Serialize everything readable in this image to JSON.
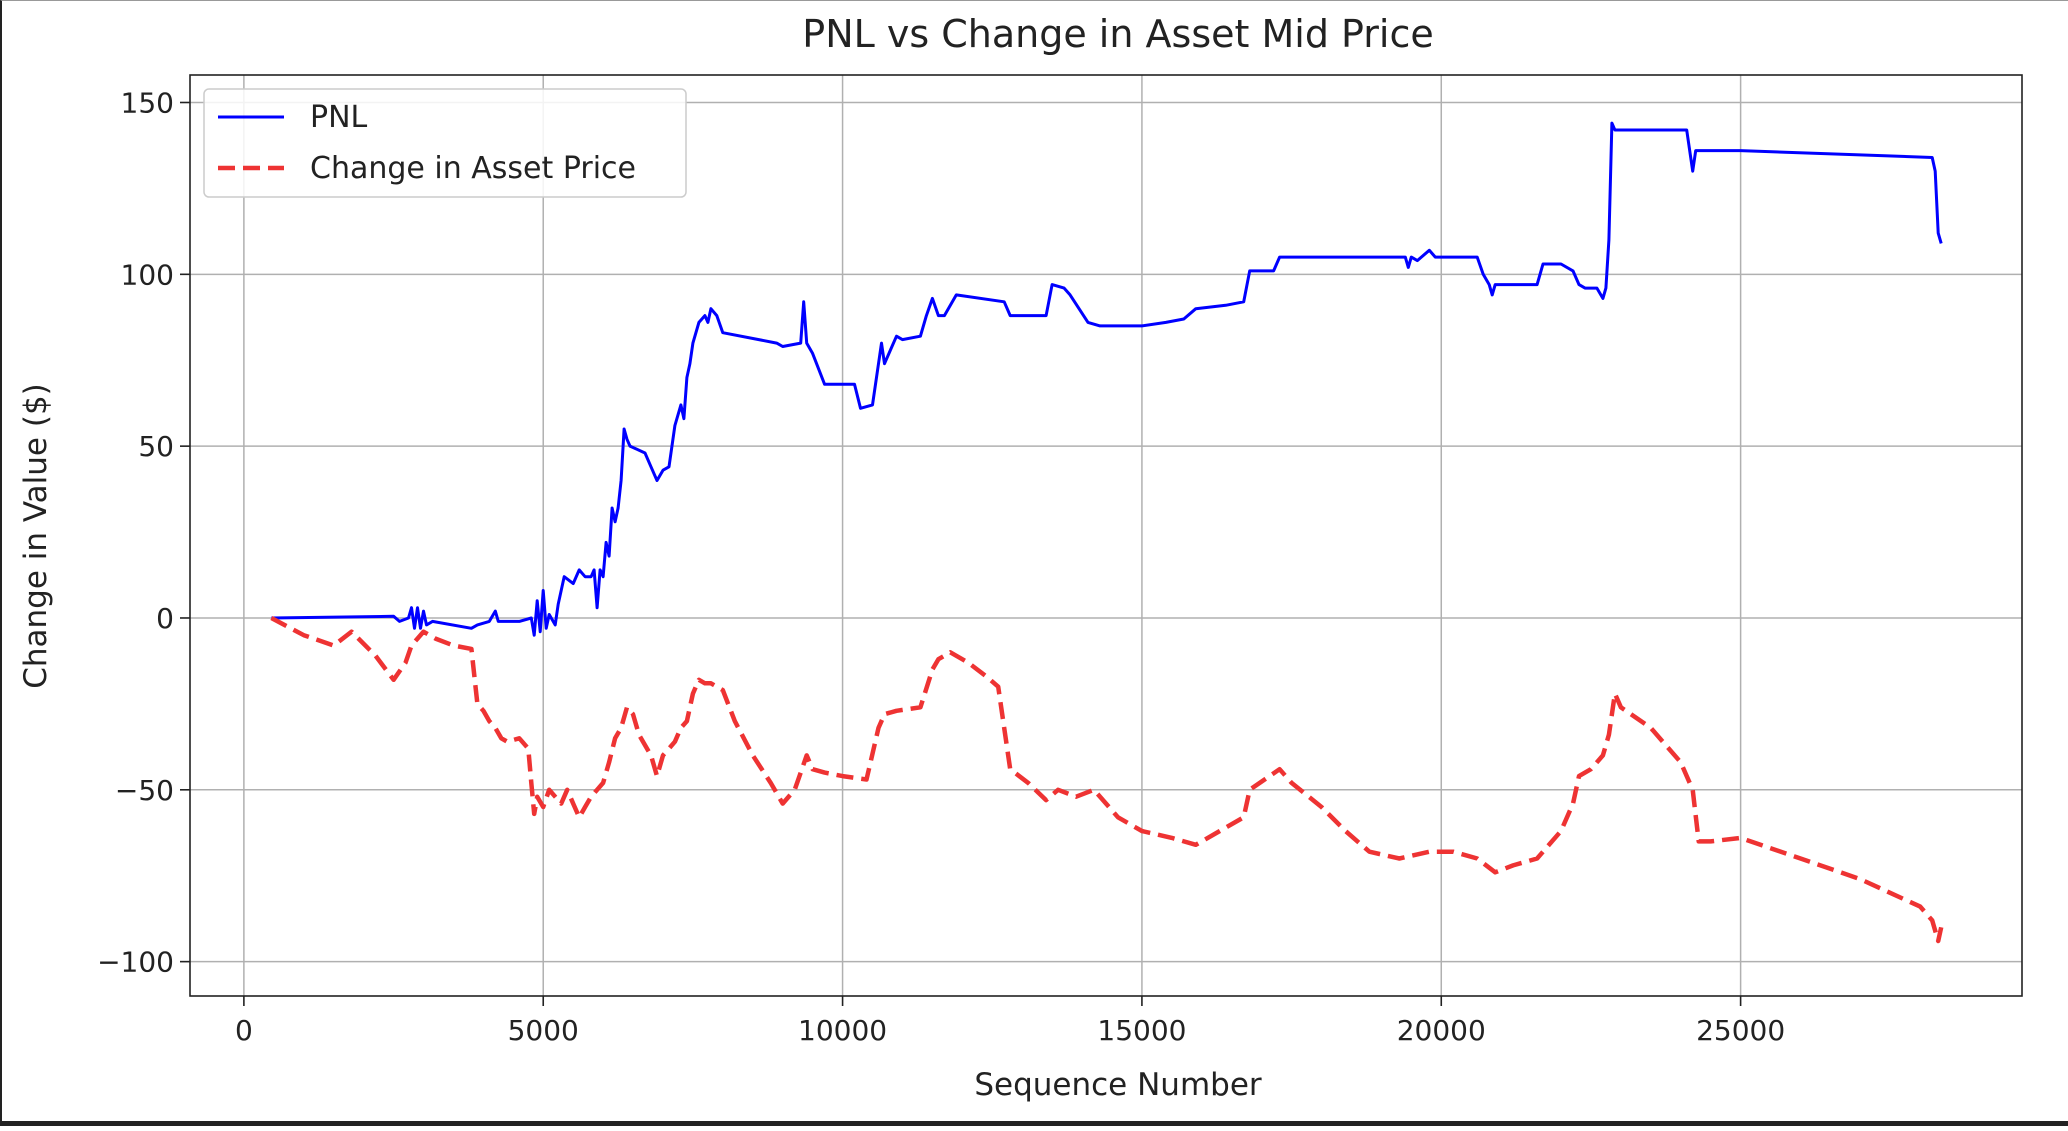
{
  "chart_data": {
    "type": "line",
    "title": "PNL vs Change in Asset Mid Price",
    "xlabel": "Sequence Number",
    "ylabel": "Change in Value ($)",
    "xlim": [
      -900,
      29700
    ],
    "ylim": [
      -110,
      158
    ],
    "xticks": [
      0,
      5000,
      10000,
      15000,
      20000,
      25000
    ],
    "yticks": [
      -100,
      -50,
      0,
      50,
      100,
      150
    ],
    "xtick_labels": [
      "0",
      "5000",
      "10000",
      "15000",
      "20000",
      "25000"
    ],
    "ytick_labels": [
      "−100",
      "−50",
      "0",
      "50",
      "100",
      "150"
    ],
    "grid": true,
    "legend_position": "top-left",
    "series": [
      {
        "name": "PNL",
        "color": "#0000ff",
        "style": "solid",
        "points": [
          [
            460,
            0
          ],
          [
            2500,
            0.5
          ],
          [
            2600,
            -1
          ],
          [
            2750,
            0
          ],
          [
            2800,
            3
          ],
          [
            2850,
            -3
          ],
          [
            2900,
            3
          ],
          [
            2950,
            -3
          ],
          [
            3000,
            2
          ],
          [
            3050,
            -2
          ],
          [
            3150,
            -1
          ],
          [
            3800,
            -3
          ],
          [
            3900,
            -2
          ],
          [
            4100,
            -1
          ],
          [
            4200,
            2
          ],
          [
            4250,
            -1
          ],
          [
            4600,
            -1
          ],
          [
            4800,
            0
          ],
          [
            4850,
            -5
          ],
          [
            4900,
            5
          ],
          [
            4950,
            -4
          ],
          [
            5000,
            8
          ],
          [
            5050,
            -3
          ],
          [
            5100,
            1
          ],
          [
            5200,
            -2
          ],
          [
            5250,
            4
          ],
          [
            5350,
            12
          ],
          [
            5500,
            10
          ],
          [
            5600,
            14
          ],
          [
            5700,
            12
          ],
          [
            5800,
            12
          ],
          [
            5850,
            14
          ],
          [
            5900,
            3
          ],
          [
            5950,
            14
          ],
          [
            6000,
            12
          ],
          [
            6050,
            22
          ],
          [
            6100,
            18
          ],
          [
            6150,
            32
          ],
          [
            6200,
            28
          ],
          [
            6250,
            32
          ],
          [
            6300,
            40
          ],
          [
            6350,
            55
          ],
          [
            6400,
            52
          ],
          [
            6450,
            50
          ],
          [
            6700,
            48
          ],
          [
            6800,
            44
          ],
          [
            6900,
            40
          ],
          [
            7000,
            43
          ],
          [
            7100,
            44
          ],
          [
            7200,
            56
          ],
          [
            7300,
            62
          ],
          [
            7350,
            58
          ],
          [
            7400,
            70
          ],
          [
            7450,
            74
          ],
          [
            7500,
            80
          ],
          [
            7600,
            86
          ],
          [
            7700,
            88
          ],
          [
            7750,
            86
          ],
          [
            7800,
            90
          ],
          [
            7900,
            88
          ],
          [
            8000,
            83
          ],
          [
            8900,
            80
          ],
          [
            9000,
            79
          ],
          [
            9300,
            80
          ],
          [
            9350,
            92
          ],
          [
            9400,
            80
          ],
          [
            9500,
            77
          ],
          [
            9700,
            68
          ],
          [
            10200,
            68
          ],
          [
            10300,
            61
          ],
          [
            10500,
            62
          ],
          [
            10600,
            74
          ],
          [
            10650,
            80
          ],
          [
            10700,
            74
          ],
          [
            10800,
            78
          ],
          [
            10900,
            82
          ],
          [
            11000,
            81
          ],
          [
            11300,
            82
          ],
          [
            11400,
            88
          ],
          [
            11500,
            93
          ],
          [
            11600,
            88
          ],
          [
            11700,
            88
          ],
          [
            11900,
            94
          ],
          [
            12700,
            92
          ],
          [
            12800,
            88
          ],
          [
            13400,
            88
          ],
          [
            13500,
            97
          ],
          [
            13700,
            96
          ],
          [
            13800,
            94
          ],
          [
            14100,
            86
          ],
          [
            14300,
            85
          ],
          [
            14600,
            85
          ],
          [
            15000,
            85
          ],
          [
            15400,
            86
          ],
          [
            15700,
            87
          ],
          [
            15900,
            90
          ],
          [
            16400,
            91
          ],
          [
            16700,
            92
          ],
          [
            16800,
            101
          ],
          [
            17200,
            101
          ],
          [
            17300,
            105
          ],
          [
            18000,
            105
          ],
          [
            19400,
            105
          ],
          [
            19450,
            102
          ],
          [
            19500,
            105
          ],
          [
            19600,
            104
          ],
          [
            19800,
            107
          ],
          [
            19900,
            105
          ],
          [
            20600,
            105
          ],
          [
            20700,
            100
          ],
          [
            20800,
            97
          ],
          [
            20850,
            94
          ],
          [
            20900,
            97
          ],
          [
            21600,
            97
          ],
          [
            21700,
            103
          ],
          [
            22000,
            103
          ],
          [
            22200,
            101
          ],
          [
            22300,
            97
          ],
          [
            22400,
            96
          ],
          [
            22500,
            96
          ],
          [
            22600,
            96
          ],
          [
            22700,
            93
          ],
          [
            22750,
            96
          ],
          [
            22800,
            110
          ],
          [
            22850,
            144
          ],
          [
            22900,
            142
          ],
          [
            23000,
            142
          ],
          [
            23500,
            142
          ],
          [
            24100,
            142
          ],
          [
            24200,
            130
          ],
          [
            24250,
            136
          ],
          [
            24300,
            136
          ],
          [
            25000,
            136
          ],
          [
            28200,
            134
          ],
          [
            28250,
            130
          ],
          [
            28300,
            112
          ],
          [
            28350,
            109
          ]
        ]
      },
      {
        "name": "Change in Asset Price",
        "color": "#ee3333",
        "style": "dashed",
        "points": [
          [
            460,
            0
          ],
          [
            1000,
            -5
          ],
          [
            1500,
            -8
          ],
          [
            1800,
            -4
          ],
          [
            2200,
            -11
          ],
          [
            2500,
            -18
          ],
          [
            2700,
            -13
          ],
          [
            2800,
            -8
          ],
          [
            2900,
            -6
          ],
          [
            3000,
            -4
          ],
          [
            3200,
            -6
          ],
          [
            3500,
            -8
          ],
          [
            3800,
            -9
          ],
          [
            3900,
            -25
          ],
          [
            4000,
            -27
          ],
          [
            4100,
            -30
          ],
          [
            4200,
            -32
          ],
          [
            4300,
            -35
          ],
          [
            4400,
            -36
          ],
          [
            4600,
            -35
          ],
          [
            4750,
            -38
          ],
          [
            4800,
            -48
          ],
          [
            4850,
            -57
          ],
          [
            4900,
            -52
          ],
          [
            5000,
            -55
          ],
          [
            5100,
            -50
          ],
          [
            5200,
            -52
          ],
          [
            5300,
            -54
          ],
          [
            5400,
            -50
          ],
          [
            5500,
            -54
          ],
          [
            5600,
            -58
          ],
          [
            5700,
            -55
          ],
          [
            5800,
            -52
          ],
          [
            5900,
            -50
          ],
          [
            6000,
            -48
          ],
          [
            6100,
            -42
          ],
          [
            6200,
            -35
          ],
          [
            6300,
            -32
          ],
          [
            6400,
            -26
          ],
          [
            6500,
            -28
          ],
          [
            6600,
            -34
          ],
          [
            6800,
            -40
          ],
          [
            6900,
            -46
          ],
          [
            7000,
            -40
          ],
          [
            7200,
            -36
          ],
          [
            7300,
            -32
          ],
          [
            7400,
            -30
          ],
          [
            7500,
            -22
          ],
          [
            7600,
            -18
          ],
          [
            7700,
            -19
          ],
          [
            7800,
            -19
          ],
          [
            8000,
            -21
          ],
          [
            8200,
            -30
          ],
          [
            8500,
            -40
          ],
          [
            8800,
            -48
          ],
          [
            9000,
            -54
          ],
          [
            9200,
            -50
          ],
          [
            9400,
            -40
          ],
          [
            9500,
            -44
          ],
          [
            9700,
            -45
          ],
          [
            10000,
            -46
          ],
          [
            10400,
            -47
          ],
          [
            10600,
            -32
          ],
          [
            10700,
            -28
          ],
          [
            10900,
            -27
          ],
          [
            11300,
            -26
          ],
          [
            11500,
            -15
          ],
          [
            11600,
            -12
          ],
          [
            11800,
            -10
          ],
          [
            12100,
            -13
          ],
          [
            12400,
            -17
          ],
          [
            12600,
            -20
          ],
          [
            12800,
            -44
          ],
          [
            13100,
            -48
          ],
          [
            13400,
            -53
          ],
          [
            13600,
            -50
          ],
          [
            13900,
            -52
          ],
          [
            14200,
            -50
          ],
          [
            14600,
            -58
          ],
          [
            15000,
            -62
          ],
          [
            15500,
            -64
          ],
          [
            15900,
            -66
          ],
          [
            16300,
            -62
          ],
          [
            16700,
            -58
          ],
          [
            16800,
            -50
          ],
          [
            17300,
            -44
          ],
          [
            17500,
            -48
          ],
          [
            18000,
            -55
          ],
          [
            18400,
            -62
          ],
          [
            18800,
            -68
          ],
          [
            19300,
            -70
          ],
          [
            19800,
            -68
          ],
          [
            20200,
            -68
          ],
          [
            20600,
            -70
          ],
          [
            20900,
            -74
          ],
          [
            21200,
            -72
          ],
          [
            21600,
            -70
          ],
          [
            22000,
            -62
          ],
          [
            22200,
            -54
          ],
          [
            22300,
            -46
          ],
          [
            22500,
            -44
          ],
          [
            22700,
            -40
          ],
          [
            22800,
            -34
          ],
          [
            22850,
            -28
          ],
          [
            22900,
            -22
          ],
          [
            23000,
            -26
          ],
          [
            23500,
            -32
          ],
          [
            24000,
            -42
          ],
          [
            24200,
            -50
          ],
          [
            24300,
            -65
          ],
          [
            24500,
            -65
          ],
          [
            25000,
            -64
          ],
          [
            26000,
            -70
          ],
          [
            27000,
            -76
          ],
          [
            28000,
            -84
          ],
          [
            28200,
            -88
          ],
          [
            28300,
            -94
          ],
          [
            28350,
            -90
          ]
        ]
      }
    ]
  }
}
